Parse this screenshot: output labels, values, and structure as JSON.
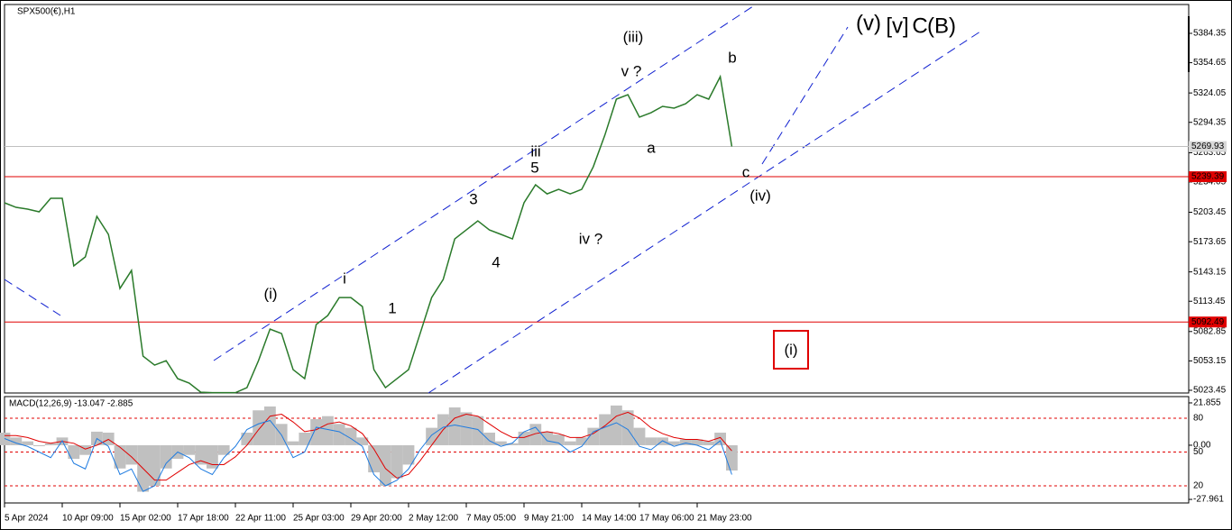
{
  "chart_data": [
    {
      "type": "line",
      "title": "SPX500(€),H1",
      "color": "#2a7a2a",
      "categories": [
        "5 Apr 2024",
        null,
        null,
        null,
        null,
        "10 Apr 09:00",
        null,
        null,
        null,
        null,
        "15 Apr 02:00",
        null,
        null,
        null,
        null,
        "17 Apr 18:00",
        null,
        null,
        null,
        null,
        "22 Apr 11:00",
        null,
        null,
        null,
        null,
        "25 Apr 03:00",
        null,
        null,
        null,
        null,
        "29 Apr 20:00",
        null,
        null,
        null,
        null,
        "2 May 12:00",
        null,
        null,
        null,
        null,
        "7 May 05:00",
        null,
        null,
        null,
        null,
        "9 May 21:00",
        null,
        null,
        null,
        null,
        "14 May 14:00",
        null,
        null,
        null,
        null,
        "17 May 06:00",
        null,
        null,
        null,
        null,
        "21 May 23:00",
        null,
        null,
        null
      ],
      "values": [
        5213,
        5208.4,
        5206.6,
        5203.9,
        5217.5,
        5217.5,
        5149.2,
        5158.3,
        5199.3,
        5181.1,
        5126.4,
        5144.6,
        5058,
        5048.9,
        5053.4,
        5035.2,
        5030.7,
        5021.5,
        5021,
        5021,
        5021,
        5026.1,
        5053.4,
        5085.3,
        5080.8,
        5044.3,
        5035.2,
        5089.9,
        5099,
        5117.2,
        5117.2,
        5108.1,
        5044.3,
        5026.1,
        5035.2,
        5044.3,
        5080.8,
        5117.2,
        5135.5,
        5176.5,
        5185.6,
        5194.7,
        5185.6,
        5181.1,
        5176.5,
        5213,
        5231.2,
        5222,
        5226.6,
        5222,
        5226.6,
        5249.4,
        5281.3,
        5317.8,
        5322.3,
        5299.6,
        5304.1,
        5310.5,
        5308.7,
        5313.2,
        5322.3,
        5317.8,
        5340.6,
        5269.93
      ],
      "ylim": [
        5020.7,
        5413.5
      ],
      "yticks": [
        5384.35,
        5354.65,
        5324.05,
        5294.35,
        5263.65,
        5234.05,
        5203.45,
        5173.65,
        5143.15,
        5113.45,
        5082.85,
        5053.15,
        5023.45
      ],
      "price_line": 5269.93,
      "price_line_color": "#c0c0c0",
      "levels": [
        5239.39,
        5092.49
      ],
      "level_color": "#e00000",
      "annotations": [
        {
          "text": "(i)",
          "color": "#1020d0"
        },
        {
          "text": "i",
          "color": "#e020e0"
        },
        {
          "text": "1",
          "color": "#000000"
        },
        {
          "text": "3",
          "color": "#000000"
        },
        {
          "text": "4",
          "color": "#000000"
        },
        {
          "text": "5",
          "color": "#000000"
        },
        {
          "text": "iii",
          "color": "#e020e0"
        },
        {
          "text": "iv ?",
          "color": "#e020e0"
        },
        {
          "text": "v ?",
          "color": "#e020e0"
        },
        {
          "text": "(iii)",
          "color": "#1020d0"
        },
        {
          "text": "a",
          "color": "#e020e0"
        },
        {
          "text": "b",
          "color": "#e020e0"
        },
        {
          "text": "c",
          "color": "#e020e0"
        },
        {
          "text": "(iv)",
          "color": "#1020d0"
        },
        {
          "text": "(v)",
          "color": "#1020d0"
        },
        {
          "text": "[v]",
          "color": "#1a8a1a"
        },
        {
          "text": "C",
          "color": "#1020d0"
        },
        {
          "text": "(B)",
          "color": "#e00000"
        },
        {
          "text": "(i)",
          "color": "#1020d0"
        }
      ]
    },
    {
      "type": "macd",
      "title": "MACD(12,26,9) -13.047 -2.885",
      "ylim": [
        -29.8,
        25.1
      ],
      "yticks": [
        21.855,
        {
          "value": 0,
          "label": "0.00"
        },
        -27.961
      ],
      "y2lim": [
        4.8,
        99.2
      ],
      "y2ticks": [
        80,
        50,
        20
      ],
      "level_color": "#e00000",
      "series": [
        {
          "color": "#c0c0c0",
          "values": [
            6.5,
            4,
            2,
            -0.5,
            1,
            4,
            -7,
            -5,
            7,
            6.5,
            -12,
            -10,
            -24,
            -21,
            -12,
            -7,
            -5,
            -10,
            -12,
            -5,
            0,
            6.5,
            18,
            20,
            11,
            2,
            6.5,
            13.5,
            15,
            11,
            9,
            4,
            -14,
            -21,
            -17,
            -10,
            0,
            9,
            16,
            19.5,
            17,
            15,
            6.5,
            2,
            1,
            7,
            11,
            7,
            5.5,
            2,
            4,
            9,
            16,
            20.5,
            18,
            9,
            4,
            4,
            2,
            3,
            3,
            2,
            6.5,
            -13.047
          ]
        },
        {
          "color": "#e00000",
          "values": [
            5,
            5,
            4,
            2,
            1,
            2,
            1,
            -2,
            0,
            3,
            -1,
            -6,
            -12,
            -18,
            -18,
            -14,
            -10,
            -8,
            -10,
            -10,
            -6,
            0,
            8,
            15,
            16,
            12,
            7,
            8,
            11,
            12,
            10,
            6,
            -2,
            -12,
            -17,
            -15,
            -8,
            0,
            8,
            14,
            16,
            15,
            11,
            7,
            4,
            4,
            6,
            7,
            6,
            4,
            4,
            6,
            10,
            15,
            17,
            14,
            9,
            6,
            4,
            3,
            3,
            2,
            4,
            -2.885
          ]
        },
        {
          "color": "#1e7be0",
          "axis": "y2",
          "values": [
            62,
            58,
            55,
            50,
            45,
            60,
            40,
            35,
            62,
            55,
            30,
            35,
            15,
            20,
            40,
            50,
            45,
            35,
            30,
            45,
            55,
            70,
            75,
            78,
            65,
            45,
            50,
            72,
            70,
            68,
            62,
            55,
            30,
            20,
            25,
            35,
            52,
            65,
            72,
            74,
            72,
            70,
            60,
            55,
            58,
            68,
            72,
            60,
            58,
            50,
            55,
            68,
            72,
            76,
            70,
            55,
            52,
            60,
            55,
            58,
            56,
            52,
            60,
            30
          ]
        }
      ]
    }
  ]
}
